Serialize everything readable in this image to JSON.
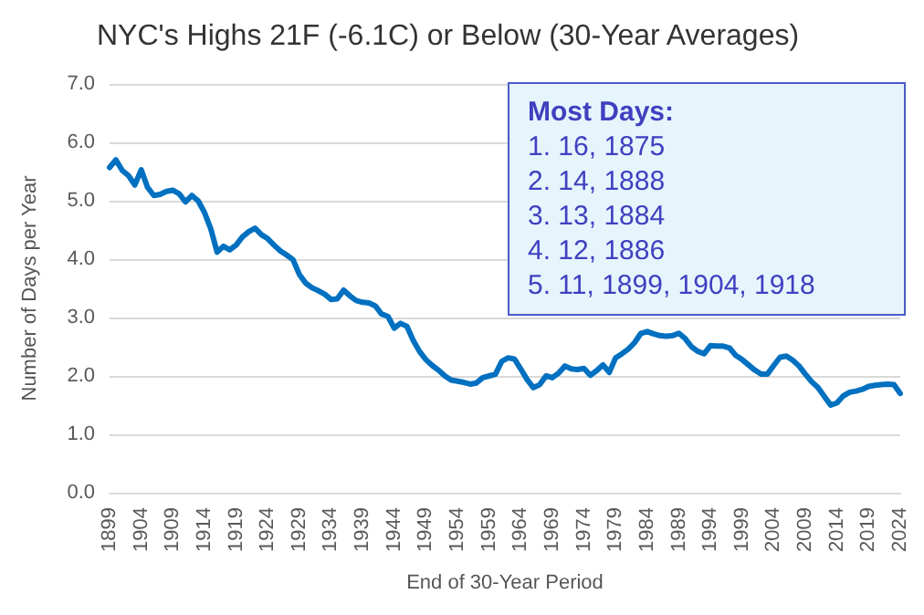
{
  "chart_data": {
    "type": "line",
    "title": "NYC's Highs 21F (-6.1C) or Below (30-Year Averages)",
    "xlabel": "End of 30-Year Period",
    "ylabel": "Number of Days per Year",
    "categories": [
      "1899",
      null,
      null,
      null,
      null,
      "1904",
      null,
      null,
      null,
      null,
      "1909",
      null,
      null,
      null,
      null,
      "1914",
      null,
      null,
      null,
      null,
      "1919",
      null,
      null,
      null,
      null,
      "1924",
      null,
      null,
      null,
      null,
      "1929",
      null,
      null,
      null,
      null,
      "1934",
      null,
      null,
      null,
      null,
      "1939",
      null,
      null,
      null,
      null,
      "1944",
      null,
      null,
      null,
      null,
      "1949",
      null,
      null,
      null,
      null,
      "1954",
      null,
      null,
      null,
      null,
      "1959",
      null,
      null,
      null,
      null,
      "1964",
      null,
      null,
      null,
      null,
      "1969",
      null,
      null,
      null,
      null,
      "1974",
      null,
      null,
      null,
      null,
      "1979",
      null,
      null,
      null,
      null,
      "1984",
      null,
      null,
      null,
      null,
      "1989",
      null,
      null,
      null,
      null,
      "1994",
      null,
      null,
      null,
      null,
      "1999",
      null,
      null,
      null,
      null,
      "2004",
      null,
      null,
      null,
      null,
      "2009",
      null,
      null,
      null,
      null,
      "2014",
      null,
      null,
      null,
      null,
      "2019",
      null,
      null,
      null,
      null,
      "2024"
    ],
    "series": [
      {
        "color": "#0070c0",
        "values": [
          5.57,
          5.7,
          5.52,
          5.43,
          5.27,
          5.53,
          5.23,
          5.09,
          5.11,
          5.16,
          5.18,
          5.12,
          4.98,
          5.09,
          5.0,
          4.8,
          4.52,
          4.12,
          4.22,
          4.16,
          4.24,
          4.38,
          4.47,
          4.53,
          4.42,
          4.35,
          4.24,
          4.14,
          4.07,
          3.99,
          3.74,
          3.59,
          3.51,
          3.46,
          3.4,
          3.31,
          3.32,
          3.47,
          3.37,
          3.29,
          3.26,
          3.25,
          3.2,
          3.06,
          3.02,
          2.82,
          2.9,
          2.85,
          2.61,
          2.42,
          2.28,
          2.18,
          2.1,
          2.0,
          1.93,
          1.91,
          1.89,
          1.86,
          1.88,
          1.97,
          2.0,
          2.03,
          2.25,
          2.31,
          2.29,
          2.12,
          1.94,
          1.8,
          1.85,
          2.0,
          1.97,
          2.05,
          2.17,
          2.12,
          2.11,
          2.13,
          2.01,
          2.09,
          2.19,
          2.06,
          2.31,
          2.38,
          2.46,
          2.57,
          2.73,
          2.76,
          2.72,
          2.69,
          2.68,
          2.69,
          2.73,
          2.64,
          2.5,
          2.42,
          2.38,
          2.52,
          2.51,
          2.51,
          2.48,
          2.35,
          2.28,
          2.19,
          2.1,
          2.03,
          2.03,
          2.18,
          2.32,
          2.34,
          2.27,
          2.17,
          2.03,
          1.9,
          1.8,
          1.65,
          1.5,
          1.54,
          1.66,
          1.72,
          1.74,
          1.77,
          1.82,
          1.84,
          1.85,
          1.86,
          1.85,
          1.7
        ]
      }
    ],
    "ylim": [
      0,
      7
    ],
    "yticks": [
      {
        "value": 0,
        "label": "0.0"
      },
      {
        "value": 1,
        "label": "1.0"
      },
      {
        "value": 2,
        "label": "2.0"
      },
      {
        "value": 3,
        "label": "3.0"
      },
      {
        "value": 4,
        "label": "4.0"
      },
      {
        "value": 5,
        "label": "5.0"
      },
      {
        "value": 6,
        "label": "6.0"
      },
      {
        "value": 7,
        "label": "7.0"
      }
    ],
    "grid": "y",
    "marker": "none",
    "line_style": "solid",
    "annotations": [
      "Most Days:",
      "1. 16, 1875",
      "2. 14, 1888",
      "3. 13, 1884",
      "4. 12, 1886",
      "5. 11, 1899, 1904, 1918"
    ]
  }
}
